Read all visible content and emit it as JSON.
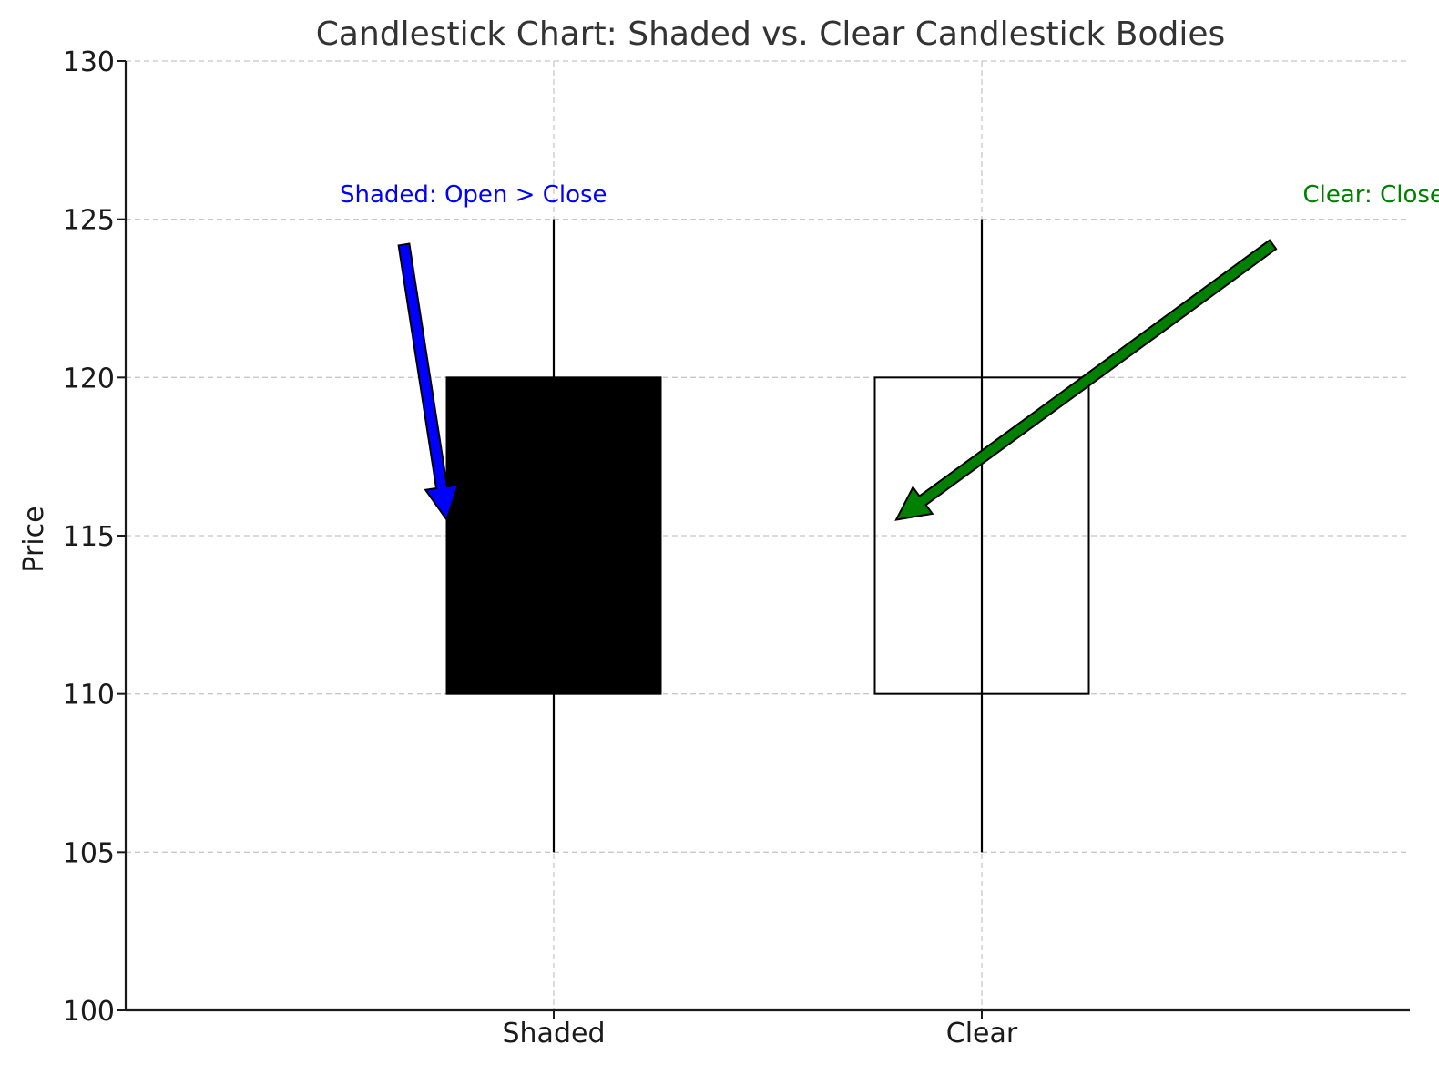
{
  "chart_data": {
    "type": "candlestick",
    "title": "Candlestick Chart: Shaded vs. Clear Candlestick Bodies",
    "xlabel": "",
    "ylabel": "Price",
    "ylim": [
      100,
      130
    ],
    "yticks": [
      "100",
      "105",
      "110",
      "115",
      "120",
      "125",
      "130"
    ],
    "categories": [
      "Shaded",
      "Clear"
    ],
    "grid": true,
    "candles": [
      {
        "name": "Shaded",
        "open": 120,
        "close": 110,
        "high": 125,
        "low": 105,
        "fill": "#000000"
      },
      {
        "name": "Clear",
        "open": 110,
        "close": 120,
        "high": 125,
        "low": 105,
        "fill": "none"
      }
    ],
    "annotations": [
      {
        "text": "Shaded: Open > Close",
        "color": "#0000ff",
        "points_to": "Shaded",
        "text_at": [
          -0.5,
          125.3
        ],
        "arrow_from": [
          -0.35,
          124.2
        ],
        "arrow_to": [
          -0.25,
          115.5
        ]
      },
      {
        "text": "Clear: Close > Open",
        "color": "#008000",
        "points_to": "Clear",
        "text_at": [
          1.75,
          125.3
        ],
        "arrow_from": [
          1.68,
          124.2
        ],
        "arrow_to": [
          0.8,
          115.5
        ]
      }
    ]
  }
}
